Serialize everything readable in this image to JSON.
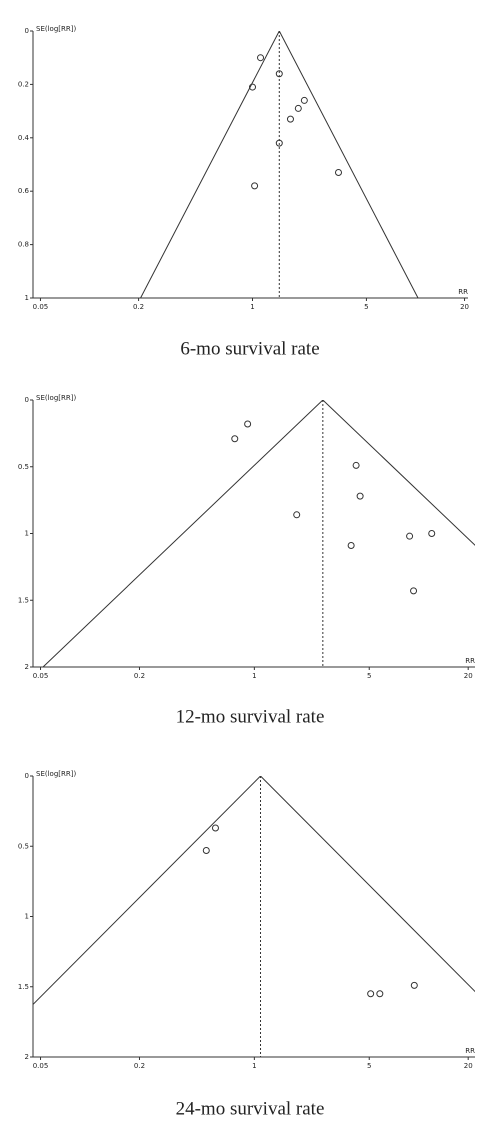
{
  "chart_data": [
    {
      "type": "scatter",
      "title": "6-mo survival rate",
      "x_label": "RR",
      "y_label": "SE(log[RR])",
      "x_scale": "log",
      "y_inverted": true,
      "pooled_rr": 1.46,
      "x": [
        1.12,
        1.0,
        1.46,
        2.08,
        1.91,
        1.71,
        1.46,
        3.37,
        1.03
      ],
      "values": [
        0.1,
        0.21,
        0.16,
        0.26,
        0.29,
        0.33,
        0.42,
        0.53,
        0.58
      ],
      "xlim": [
        0.045,
        21
      ],
      "xticks": [
        0.05,
        0.2,
        1,
        5,
        20
      ],
      "ylim": [
        0,
        1
      ],
      "yticks": [
        0,
        0.2,
        0.4,
        0.6,
        0.8,
        1
      ],
      "color": "#333"
    },
    {
      "type": "scatter",
      "title": "12-mo survival rate",
      "x_label": "RR",
      "y_label": "SE(log[RR])",
      "x_scale": "log",
      "y_inverted": true,
      "pooled_rr": 2.61,
      "x": [
        0.91,
        0.76,
        4.16,
        4.4,
        1.81,
        3.88,
        8.8,
        12.0,
        9.3
      ],
      "values": [
        0.18,
        0.29,
        0.49,
        0.72,
        0.86,
        1.09,
        1.02,
        1.0,
        1.43
      ],
      "xlim": [
        0.045,
        22
      ],
      "xticks": [
        0.05,
        0.2,
        1,
        5,
        20
      ],
      "ylim": [
        0,
        2
      ],
      "yticks": [
        0,
        0.5,
        1,
        1.5,
        2
      ],
      "color": "#333"
    },
    {
      "type": "scatter",
      "title": "24-mo survival rate",
      "x_label": "RR",
      "y_label": "SE(log[RR])",
      "x_scale": "log",
      "y_inverted": true,
      "pooled_rr": 1.09,
      "x": [
        0.58,
        0.51,
        5.1,
        5.8,
        9.4
      ],
      "values": [
        0.37,
        0.53,
        1.55,
        1.55,
        1.49
      ],
      "xlim": [
        0.045,
        22
      ],
      "xticks": [
        0.05,
        0.2,
        1,
        5,
        20
      ],
      "ylim": [
        0,
        2
      ],
      "yticks": [
        0,
        0.5,
        1,
        1.5,
        2
      ],
      "color": "#333"
    }
  ]
}
